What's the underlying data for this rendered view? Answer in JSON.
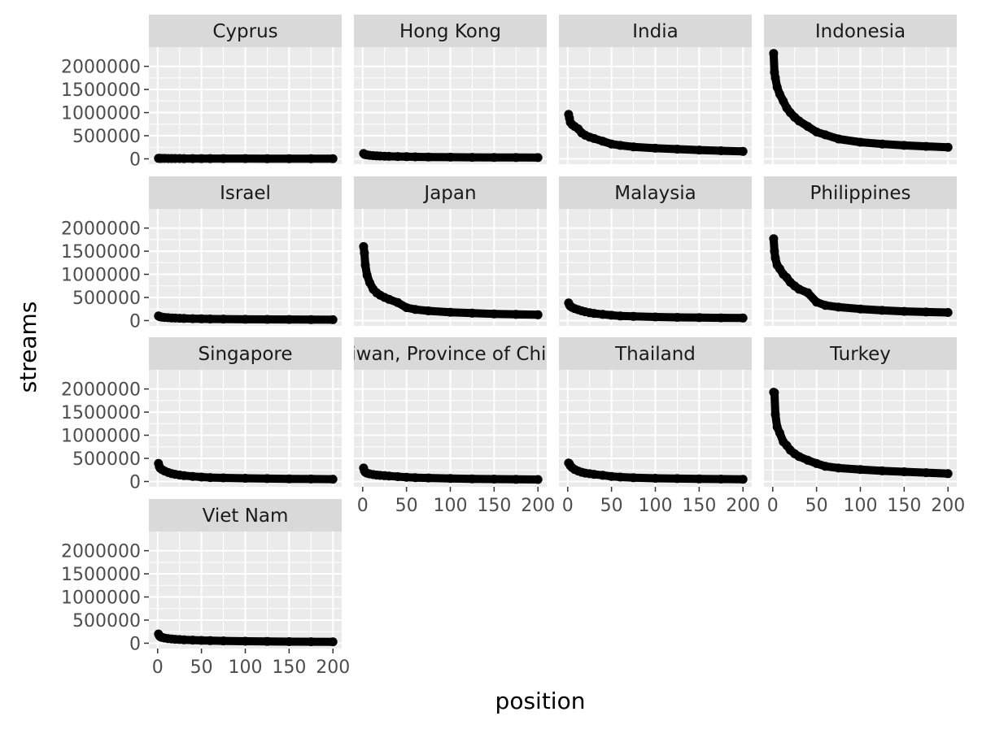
{
  "chart_data": {
    "type": "scatter",
    "facet_type": "wrap",
    "xlabel": "position",
    "ylabel": "streams",
    "xlim": [
      0,
      200
    ],
    "ylim": [
      0,
      2300000
    ],
    "x_ticks": [
      0,
      50,
      100,
      150,
      200
    ],
    "x_tick_labels": [
      "0",
      "50",
      "100",
      "150",
      "200"
    ],
    "y_ticks": [
      0,
      500000,
      1000000,
      1500000,
      2000000
    ],
    "y_tick_labels": [
      "0",
      "500000",
      "1000000",
      "1500000",
      "2000000"
    ],
    "grid": true,
    "point_color": "#000000",
    "panel_background": "#ebebeb",
    "strip_background": "#d9d9d9",
    "gridline_color": "#ffffff",
    "x_sample_positions": [
      1,
      2,
      3,
      5,
      8,
      12,
      16,
      20,
      25,
      30,
      40,
      50,
      60,
      75,
      100,
      125,
      150,
      175,
      200
    ],
    "facets": [
      {
        "label": "Cyprus",
        "y": [
          12000,
          11000,
          10000,
          9500,
          9000,
          8500,
          8000,
          7700,
          7400,
          7100,
          6700,
          6400,
          6100,
          5800,
          5400,
          5100,
          4800,
          4600,
          4400
        ]
      },
      {
        "label": "Hong Kong",
        "y": [
          115000,
          100000,
          92000,
          85000,
          77000,
          70000,
          65000,
          61000,
          57000,
          54000,
          50000,
          46000,
          43000,
          40000,
          36000,
          33000,
          31000,
          29000,
          27000
        ]
      },
      {
        "label": "India",
        "y": [
          960000,
          880000,
          790000,
          740000,
          700000,
          650000,
          560000,
          510000,
          470000,
          440000,
          380000,
          320000,
          290000,
          260000,
          230000,
          210000,
          190000,
          175000,
          160000
        ]
      },
      {
        "label": "Indonesia",
        "y": [
          2280000,
          1870000,
          1750000,
          1550000,
          1400000,
          1250000,
          1100000,
          1000000,
          900000,
          820000,
          700000,
          580000,
          520000,
          430000,
          360000,
          320000,
          290000,
          270000,
          250000
        ]
      },
      {
        "label": "Israel",
        "y": [
          100000,
          90000,
          82000,
          75000,
          68000,
          62000,
          57000,
          53000,
          50000,
          47000,
          42000,
          38000,
          35000,
          32000,
          28000,
          25000,
          23000,
          21000,
          19000
        ]
      },
      {
        "label": "Japan",
        "y": [
          1600000,
          1460000,
          1200000,
          980000,
          820000,
          680000,
          600000,
          550000,
          500000,
          460000,
          390000,
          280000,
          240000,
          210000,
          180000,
          160000,
          145000,
          135000,
          125000
        ]
      },
      {
        "label": "Malaysia",
        "y": [
          380000,
          340000,
          310000,
          285000,
          260000,
          235000,
          210000,
          190000,
          170000,
          155000,
          135000,
          115000,
          100000,
          90000,
          78000,
          70000,
          64000,
          59000,
          55000
        ]
      },
      {
        "label": "Philippines",
        "y": [
          1770000,
          1500000,
          1350000,
          1200000,
          1120000,
          1000000,
          930000,
          830000,
          750000,
          680000,
          600000,
          400000,
          330000,
          290000,
          250000,
          220000,
          200000,
          185000,
          175000
        ]
      },
      {
        "label": "Singapore",
        "y": [
          390000,
          320000,
          285000,
          255000,
          225000,
          195000,
          172000,
          155000,
          140000,
          128000,
          110000,
          95000,
          86000,
          78000,
          69000,
          62000,
          57000,
          53000,
          50000
        ]
      },
      {
        "label": "Taiwan, Province of China",
        "y": [
          290000,
          230000,
          200000,
          180000,
          165000,
          150000,
          140000,
          132000,
          125000,
          118000,
          105000,
          92000,
          84000,
          76000,
          66000,
          58000,
          52000,
          47000,
          43000
        ]
      },
      {
        "label": "Thailand",
        "y": [
          400000,
          380000,
          340000,
          300000,
          260000,
          225000,
          200000,
          182000,
          168000,
          155000,
          135000,
          110000,
          95000,
          82000,
          70000,
          62000,
          56000,
          52000,
          48000
        ]
      },
      {
        "label": "Turkey",
        "y": [
          1930000,
          1920000,
          1450000,
          1180000,
          1050000,
          860000,
          780000,
          680000,
          600000,
          540000,
          460000,
          390000,
          330000,
          290000,
          260000,
          230000,
          210000,
          190000,
          170000
        ]
      },
      {
        "label": "Viet Nam",
        "y": [
          200000,
          160000,
          140000,
          125000,
          112000,
          100000,
          92000,
          86000,
          80000,
          75000,
          67000,
          60000,
          55000,
          50000,
          44000,
          39000,
          35000,
          32000,
          30000
        ]
      }
    ]
  }
}
